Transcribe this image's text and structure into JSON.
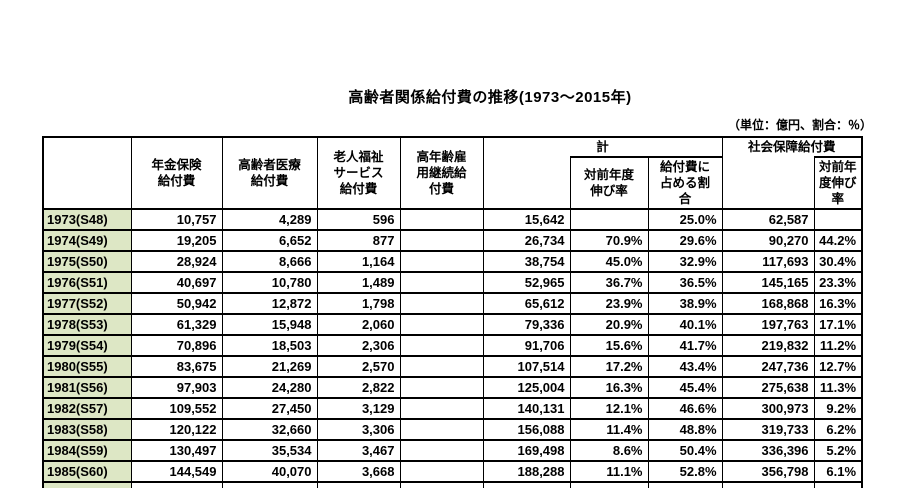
{
  "title": "高齢者関係給付費の推移(1973～2015年)",
  "unit_note": "（単位：億円、割合：％）",
  "table": {
    "headers": {
      "year": "",
      "pension": "年金保険\n給付費",
      "medical": "高齢者医療\n給付費",
      "welfare": "老人福祉\nサービス\n給付費",
      "employment": "高年齢雇\n用継続給\n付費",
      "total_group": "計",
      "total_yoy": "対前年度\n伸び率",
      "total_share": "給付費に\n占める割\n合",
      "social_group": "社会保障給付費",
      "social_yoy": "対前年\n度伸び\n率"
    },
    "colors": {
      "year_column_bg": "#dde7c5",
      "border": "#000000",
      "text": "#000000",
      "background": "#ffffff"
    },
    "rows": [
      {
        "year": "1973(S48)",
        "pension": "10,757",
        "medical": "4,289",
        "welfare": "596",
        "employment": "",
        "total": "15,642",
        "total_yoy": "",
        "total_share": "25.0%",
        "social": "62,587",
        "social_yoy": ""
      },
      {
        "year": "1974(S49)",
        "pension": "19,205",
        "medical": "6,652",
        "welfare": "877",
        "employment": "",
        "total": "26,734",
        "total_yoy": "70.9%",
        "total_share": "29.6%",
        "social": "90,270",
        "social_yoy": "44.2%"
      },
      {
        "year": "1975(S50)",
        "pension": "28,924",
        "medical": "8,666",
        "welfare": "1,164",
        "employment": "",
        "total": "38,754",
        "total_yoy": "45.0%",
        "total_share": "32.9%",
        "social": "117,693",
        "social_yoy": "30.4%"
      },
      {
        "year": "1976(S51)",
        "pension": "40,697",
        "medical": "10,780",
        "welfare": "1,489",
        "employment": "",
        "total": "52,965",
        "total_yoy": "36.7%",
        "total_share": "36.5%",
        "social": "145,165",
        "social_yoy": "23.3%"
      },
      {
        "year": "1977(S52)",
        "pension": "50,942",
        "medical": "12,872",
        "welfare": "1,798",
        "employment": "",
        "total": "65,612",
        "total_yoy": "23.9%",
        "total_share": "38.9%",
        "social": "168,868",
        "social_yoy": "16.3%"
      },
      {
        "year": "1978(S53)",
        "pension": "61,329",
        "medical": "15,948",
        "welfare": "2,060",
        "employment": "",
        "total": "79,336",
        "total_yoy": "20.9%",
        "total_share": "40.1%",
        "social": "197,763",
        "social_yoy": "17.1%"
      },
      {
        "year": "1979(S54)",
        "pension": "70,896",
        "medical": "18,503",
        "welfare": "2,306",
        "employment": "",
        "total": "91,706",
        "total_yoy": "15.6%",
        "total_share": "41.7%",
        "social": "219,832",
        "social_yoy": "11.2%"
      },
      {
        "year": "1980(S55)",
        "pension": "83,675",
        "medical": "21,269",
        "welfare": "2,570",
        "employment": "",
        "total": "107,514",
        "total_yoy": "17.2%",
        "total_share": "43.4%",
        "social": "247,736",
        "social_yoy": "12.7%"
      },
      {
        "year": "1981(S56)",
        "pension": "97,903",
        "medical": "24,280",
        "welfare": "2,822",
        "employment": "",
        "total": "125,004",
        "total_yoy": "16.3%",
        "total_share": "45.4%",
        "social": "275,638",
        "social_yoy": "11.3%"
      },
      {
        "year": "1982(S57)",
        "pension": "109,552",
        "medical": "27,450",
        "welfare": "3,129",
        "employment": "",
        "total": "140,131",
        "total_yoy": "12.1%",
        "total_share": "46.6%",
        "social": "300,973",
        "social_yoy": "9.2%"
      },
      {
        "year": "1983(S58)",
        "pension": "120,122",
        "medical": "32,660",
        "welfare": "3,306",
        "employment": "",
        "total": "156,088",
        "total_yoy": "11.4%",
        "total_share": "48.8%",
        "social": "319,733",
        "social_yoy": "6.2%"
      },
      {
        "year": "1984(S59)",
        "pension": "130,497",
        "medical": "35,534",
        "welfare": "3,467",
        "employment": "",
        "total": "169,498",
        "total_yoy": "8.6%",
        "total_share": "50.4%",
        "social": "336,396",
        "social_yoy": "5.2%"
      },
      {
        "year": "1985(S60)",
        "pension": "144,549",
        "medical": "40,070",
        "welfare": "3,668",
        "employment": "",
        "total": "188,288",
        "total_yoy": "11.1%",
        "total_share": "52.8%",
        "social": "356,798",
        "social_yoy": "6.1%"
      }
    ],
    "has_partial_next_row": true
  }
}
